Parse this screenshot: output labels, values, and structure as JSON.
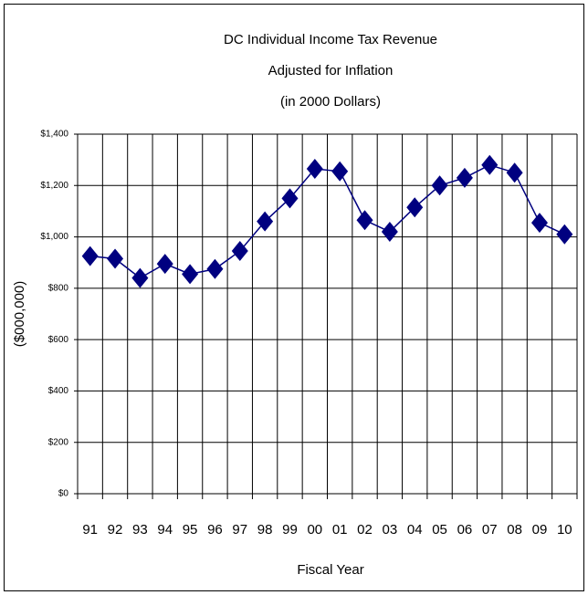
{
  "chart_data": {
    "type": "line",
    "title": [
      "DC Individual Income Tax Revenue",
      "Adjusted for Inflation",
      "(in 2000 Dollars)"
    ],
    "x_label": "Fiscal Year",
    "y_label": "($000,000)",
    "categories": [
      "91",
      "92",
      "93",
      "94",
      "95",
      "96",
      "97",
      "98",
      "99",
      "00",
      "01",
      "02",
      "03",
      "04",
      "05",
      "06",
      "07",
      "08",
      "09",
      "10"
    ],
    "series": [
      {
        "name": "DC Individual Income Tax Revenue",
        "color": "#000080",
        "values": [
          925,
          915,
          840,
          895,
          855,
          875,
          945,
          1060,
          1150,
          1265,
          1255,
          1065,
          1020,
          1115,
          1200,
          1230,
          1280,
          1250,
          1055,
          1010
        ]
      }
    ],
    "ylim": [
      0,
      1400
    ],
    "yticks": [
      {
        "value": 0,
        "label": "$0"
      },
      {
        "value": 200,
        "label": "$200"
      },
      {
        "value": 400,
        "label": "$400"
      },
      {
        "value": 600,
        "label": "$600"
      },
      {
        "value": 800,
        "label": "$800"
      },
      {
        "value": 1000,
        "label": "$1,000"
      },
      {
        "value": 1200,
        "label": "$1,200"
      },
      {
        "value": 1400,
        "label": "$1,400"
      }
    ],
    "grid": true
  }
}
